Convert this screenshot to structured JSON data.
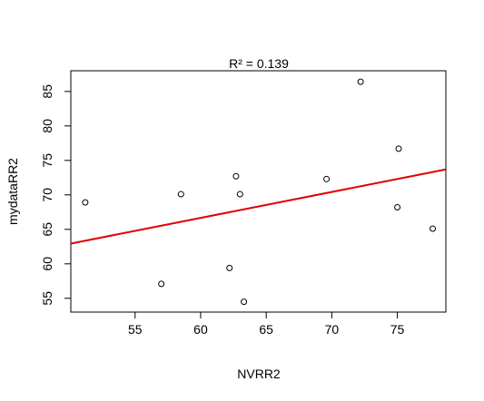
{
  "chart_data": {
    "type": "scatter",
    "title": "R² = 0.139",
    "xlabel": "NVRR2",
    "ylabel": "mydataRR2",
    "xlim": [
      50.1,
      78.7
    ],
    "ylim": [
      53.0,
      88.0
    ],
    "x_ticks": [
      55,
      60,
      65,
      70,
      75
    ],
    "y_ticks": [
      55,
      60,
      65,
      70,
      75,
      80,
      85
    ],
    "grid": false,
    "points": [
      {
        "x": 51.2,
        "y": 68.9
      },
      {
        "x": 57.0,
        "y": 57.1
      },
      {
        "x": 58.5,
        "y": 70.1
      },
      {
        "x": 62.2,
        "y": 59.4
      },
      {
        "x": 62.7,
        "y": 72.7
      },
      {
        "x": 63.0,
        "y": 70.1
      },
      {
        "x": 63.3,
        "y": 54.5
      },
      {
        "x": 69.6,
        "y": 72.3
      },
      {
        "x": 72.2,
        "y": 86.4
      },
      {
        "x": 75.0,
        "y": 68.2
      },
      {
        "x": 75.1,
        "y": 76.7
      },
      {
        "x": 77.7,
        "y": 65.1
      }
    ],
    "fit_line": {
      "intercept": 44.1,
      "slope": 0.376,
      "color": "#e00000"
    },
    "point_color": "#000000"
  }
}
